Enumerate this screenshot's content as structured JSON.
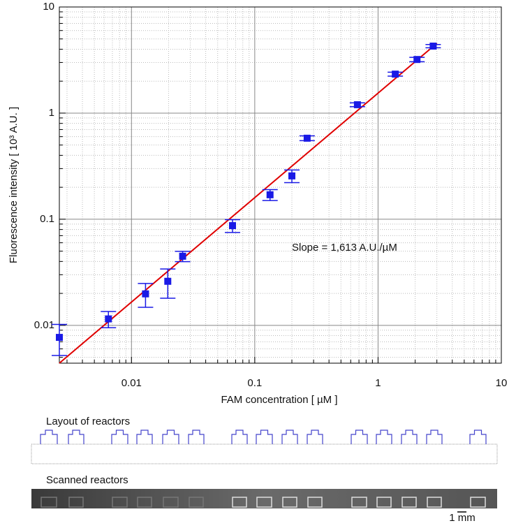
{
  "chart_data": {
    "type": "scatter",
    "xlabel": "FAM concentration    [ µM ]",
    "ylabel": "Fluorescence intensity    [ 10³  A.U. ]",
    "annotation": "Slope = 1,613 A.U./µM",
    "log_x": true,
    "log_y": true,
    "grid": true,
    "x": [
      0.0026,
      0.0065,
      0.013,
      0.0197,
      0.026,
      0.066,
      0.133,
      0.2,
      0.266,
      0.68,
      1.38,
      2.07,
      2.8
    ],
    "values": [
      0.0077,
      0.0115,
      0.0198,
      0.026,
      0.0448,
      0.087,
      0.17,
      0.256,
      0.58,
      1.2,
      2.33,
      3.2,
      4.28
    ],
    "errors": [
      0.0025,
      0.002,
      0.005,
      0.008,
      0.005,
      0.012,
      0.02,
      0.035,
      0.03,
      0.05,
      0.1,
      0.15,
      0.15
    ],
    "color": "#1a1ae6",
    "fit": {
      "x": [
        0.0026,
        3.0
      ],
      "y": [
        0.0044,
        4.55
      ],
      "color": "#e00000"
    },
    "xlim": [
      0.0026,
      10
    ],
    "ylim": [
      0.0044,
      10
    ],
    "xticks": [
      0.01,
      0.1,
      1,
      10
    ],
    "yticks": [
      0.01,
      0.1,
      1,
      10
    ],
    "xminor_ticks": [
      0.003,
      0.004,
      0.005,
      0.006,
      0.007,
      0.008,
      0.009,
      0.02,
      0.03,
      0.04,
      0.05,
      0.06,
      0.07,
      0.08,
      0.09,
      0.2,
      0.3,
      0.4,
      0.5,
      0.6,
      0.7,
      0.8,
      0.9,
      2,
      3,
      4,
      5,
      6,
      7,
      8,
      9
    ],
    "yminor_ticks": [
      0.005,
      0.006,
      0.007,
      0.008,
      0.009,
      0.02,
      0.03,
      0.04,
      0.05,
      0.06,
      0.07,
      0.08,
      0.09,
      0.2,
      0.3,
      0.4,
      0.5,
      0.6,
      0.7,
      0.8,
      0.9,
      2,
      3,
      4,
      5,
      6,
      7,
      8,
      9
    ]
  },
  "panels": {
    "layout_title": "Layout of reactors",
    "scan_title": "Scanned reactors",
    "scale_bar": "1 mm"
  }
}
